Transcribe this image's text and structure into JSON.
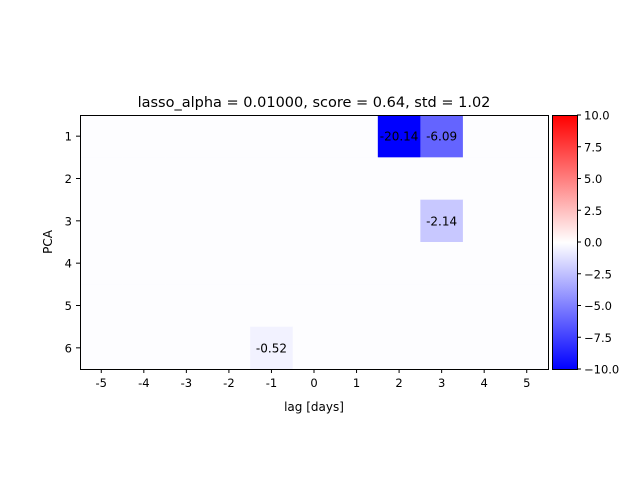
{
  "chart_data": {
    "type": "heatmap",
    "title": "lasso_alpha = 0.01000, score = 0.64, std = 1.02",
    "xlabel": "lag [days]",
    "ylabel": "PCA",
    "x": [
      -5,
      -4,
      -3,
      -2,
      -1,
      0,
      1,
      2,
      3,
      4,
      5
    ],
    "y": [
      1,
      2,
      3,
      4,
      5,
      6
    ],
    "x_tick_labels": [
      "-5",
      "-4",
      "-3",
      "-2",
      "-1",
      "0",
      "1",
      "2",
      "3",
      "4",
      "5"
    ],
    "y_tick_labels": [
      "1",
      "2",
      "3",
      "4",
      "5",
      "6"
    ],
    "values": [
      [
        0,
        0,
        0,
        0,
        0,
        0,
        0,
        -20.14,
        -6.09,
        0,
        0
      ],
      [
        0,
        0,
        0,
        0,
        0,
        0,
        0,
        0,
        0,
        0,
        0
      ],
      [
        0,
        0,
        0,
        0,
        0,
        0,
        0,
        0,
        -2.14,
        0,
        0
      ],
      [
        0,
        0,
        0,
        0,
        0,
        0,
        0,
        0,
        0,
        0,
        0
      ],
      [
        0,
        0,
        0,
        0,
        0,
        0,
        0,
        0,
        0,
        0,
        0
      ],
      [
        0,
        0,
        0,
        0,
        -0.52,
        0,
        0,
        0,
        0,
        0,
        0
      ]
    ],
    "annotations": [
      {
        "row": 0,
        "col": 7,
        "text": "-20.14"
      },
      {
        "row": 0,
        "col": 8,
        "text": "-6.09"
      },
      {
        "row": 2,
        "col": 8,
        "text": "-2.14"
      },
      {
        "row": 5,
        "col": 4,
        "text": "-0.52"
      }
    ],
    "colormap": "bwr",
    "colors": {
      "low": "#0000ff",
      "mid": "#ffffff",
      "high": "#ff0000"
    },
    "vmin": -10,
    "vmax": 10,
    "colorbar": {
      "position": "right",
      "ticks": [
        10.0,
        7.5,
        5.0,
        2.5,
        0.0,
        -2.5,
        -5.0,
        -7.5,
        -10.0
      ],
      "tick_labels": [
        "10.0",
        "7.5",
        "5.0",
        "2.5",
        "0.0",
        "−2.5",
        "−5.0",
        "−7.5",
        "−10.0"
      ]
    },
    "grid": false
  }
}
